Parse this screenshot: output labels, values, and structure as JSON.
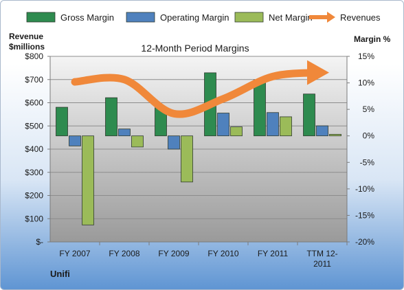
{
  "chart_data": {
    "type": "bar",
    "title": "12-Month Period Margins",
    "company": "Unifi",
    "left_axis": {
      "title_line1": "Revenue",
      "title_line2": "$millions",
      "ylim": [
        0,
        800
      ],
      "ticks": [
        {
          "value": 800,
          "label": "$800"
        },
        {
          "value": 700,
          "label": "$700"
        },
        {
          "value": 600,
          "label": "$600"
        },
        {
          "value": 500,
          "label": "$500"
        },
        {
          "value": 400,
          "label": "$400"
        },
        {
          "value": 300,
          "label": "$300"
        },
        {
          "value": 200,
          "label": "$200"
        },
        {
          "value": 100,
          "label": "$100"
        },
        {
          "value": 0,
          "label": "$-"
        }
      ]
    },
    "right_axis": {
      "title": "Margin %",
      "ylim": [
        -20,
        15
      ],
      "ticks": [
        {
          "value": 15,
          "label": "15%"
        },
        {
          "value": 10,
          "label": "10%"
        },
        {
          "value": 5,
          "label": "5%"
        },
        {
          "value": 0,
          "label": "0%"
        },
        {
          "value": -5,
          "label": "-5%"
        },
        {
          "value": -10,
          "label": "-10%"
        },
        {
          "value": -15,
          "label": "-15%"
        },
        {
          "value": -20,
          "label": "-20%"
        }
      ]
    },
    "categories": [
      {
        "line1": "FY 2007",
        "line2": ""
      },
      {
        "line1": "FY 2008",
        "line2": ""
      },
      {
        "line1": "FY 2009",
        "line2": ""
      },
      {
        "line1": "FY 2010",
        "line2": ""
      },
      {
        "line1": "FY 2011",
        "line2": ""
      },
      {
        "line1": "TTM 12-",
        "line2": "2011"
      }
    ],
    "series": [
      {
        "name": "Gross Margin",
        "axis": "right",
        "color": "#2e8b4f",
        "values": [
          5.4,
          7.2,
          5.3,
          11.9,
          10.6,
          7.9
        ]
      },
      {
        "name": "Operating Margin",
        "axis": "right",
        "color": "#4f81bd",
        "values": [
          -1.9,
          1.3,
          -2.5,
          4.3,
          4.4,
          1.9
        ]
      },
      {
        "name": "Net Margin",
        "axis": "right",
        "color": "#9bbb59",
        "values": [
          -16.8,
          -2.1,
          -8.7,
          1.7,
          3.6,
          0.3
        ]
      },
      {
        "name": "Revenues",
        "axis": "left",
        "type": "line",
        "color": "#f0883a",
        "values": [
          690,
          700,
          553,
          617,
          713,
          730
        ]
      }
    ],
    "grid": true,
    "legend_position": "top"
  }
}
